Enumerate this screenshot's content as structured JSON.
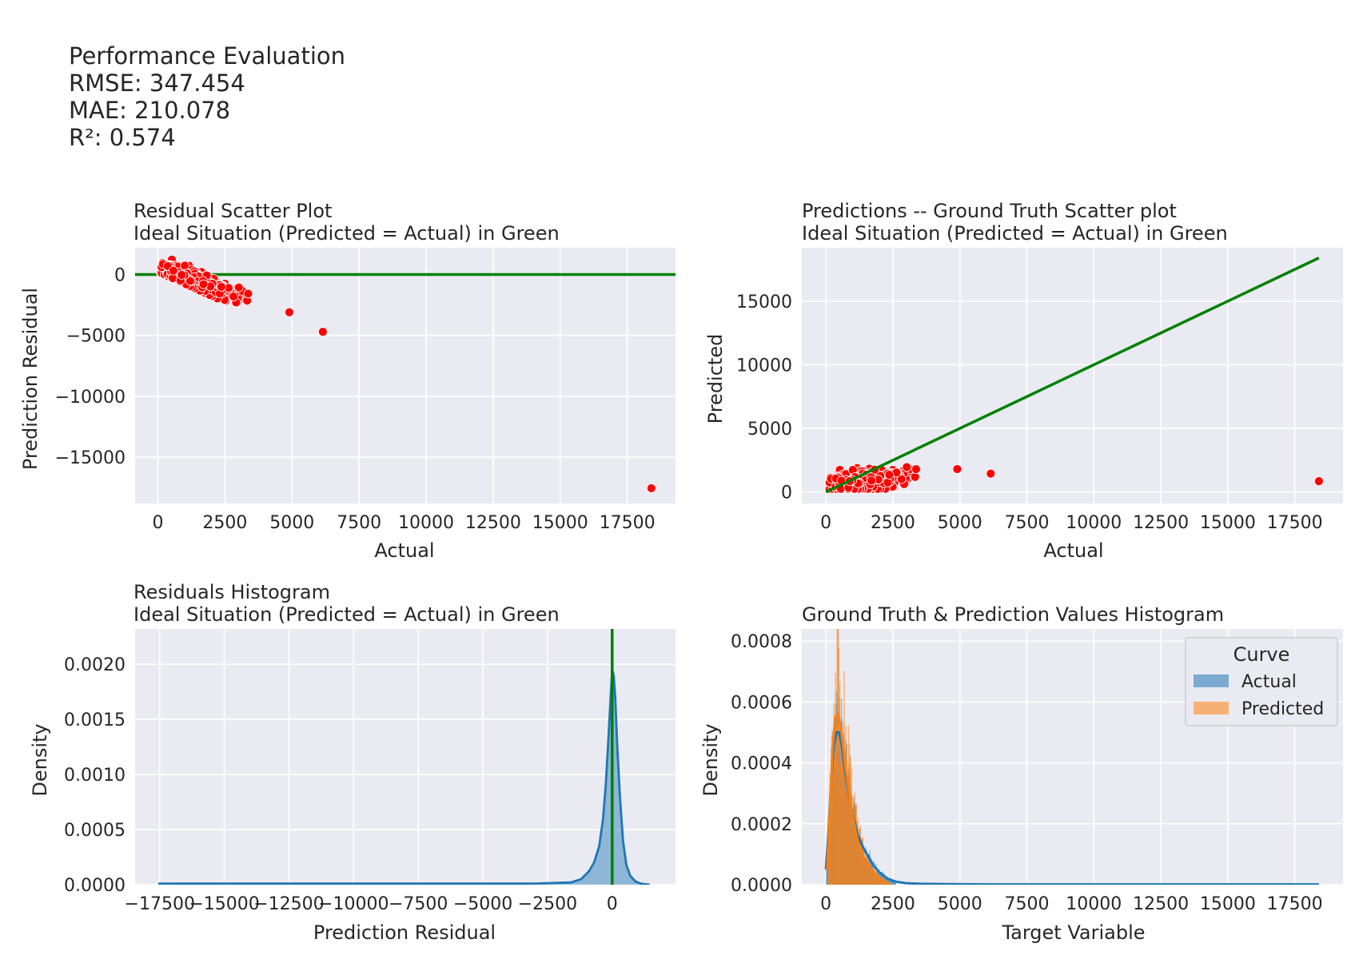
{
  "header": {
    "lines": [
      "Performance Evaluation",
      "RMSE: 347.454",
      "MAE: 210.078",
      "R²: 0.574"
    ]
  },
  "colors": {
    "panel_bg": "#eaeaf2",
    "grid": "#ffffff",
    "points": "#ff0000",
    "ideal_line": "#008000",
    "actual": "#1f77b4",
    "predicted": "#ff7f0e"
  },
  "chart_data": [
    {
      "id": "residual-scatter",
      "type": "scatter",
      "title": [
        "Residual Scatter Plot",
        "Ideal Situation (Predicted = Actual) in Green"
      ],
      "xlabel": "Actual",
      "ylabel": "Prediction Residual",
      "xlim": [
        -850,
        19300
      ],
      "ylim": [
        -18800,
        2200
      ],
      "xticks": [
        0,
        2500,
        5000,
        7500,
        10000,
        12500,
        15000,
        17500
      ],
      "xtick_labels": [
        "0",
        "2500",
        "5000",
        "7500",
        "10000",
        "12500",
        "15000",
        "17500"
      ],
      "yticks": [
        -15000,
        -10000,
        -5000,
        0
      ],
      "ytick_labels": [
        "−15000",
        "−10000",
        "−5000",
        "0"
      ],
      "grid": true,
      "ideal_line": {
        "orientation": "horizontal",
        "y": 0
      },
      "cluster": {
        "x_range": [
          0,
          3700
        ],
        "note": "dense cloud of points with residual decreasing as actual increases"
      },
      "outliers": [
        {
          "x": 4900,
          "y": -3100
        },
        {
          "x": 6150,
          "y": -4700
        },
        {
          "x": 18400,
          "y": -17550
        }
      ]
    },
    {
      "id": "pred-vs-truth",
      "type": "scatter",
      "title": [
        "Predictions -- Ground Truth Scatter plot",
        "Ideal Situation (Predicted = Actual) in Green"
      ],
      "xlabel": "Actual",
      "ylabel": "Predicted",
      "xlim": [
        -900,
        19300
      ],
      "ylim": [
        -900,
        19200
      ],
      "xticks": [
        0,
        2500,
        5000,
        7500,
        10000,
        12500,
        15000,
        17500
      ],
      "xtick_labels": [
        "0",
        "2500",
        "5000",
        "7500",
        "10000",
        "12500",
        "15000",
        "17500"
      ],
      "yticks": [
        0,
        5000,
        10000,
        15000
      ],
      "ytick_labels": [
        "0",
        "5000",
        "10000",
        "15000"
      ],
      "grid": true,
      "ideal_line": {
        "orientation": "diagonal",
        "from": [
          0,
          0
        ],
        "to": [
          18400,
          18400
        ]
      },
      "outliers": [
        {
          "x": 4900,
          "y": 1800
        },
        {
          "x": 6150,
          "y": 1450
        },
        {
          "x": 18400,
          "y": 850
        }
      ]
    },
    {
      "id": "residual-hist",
      "type": "area",
      "title": [
        "Residuals Histogram",
        "Ideal Situation (Predicted = Actual) in Green"
      ],
      "xlabel": "Prediction Residual",
      "ylabel": "Density",
      "xlim": [
        -18450,
        2450
      ],
      "ylim": [
        0,
        0.00232
      ],
      "xticks": [
        -17500,
        -15000,
        -12500,
        -10000,
        -7500,
        -5000,
        -2500,
        0
      ],
      "xtick_labels": [
        "−17500",
        "−15000",
        "−12500",
        "−10000",
        "−7500",
        "−5000",
        "−2500",
        "0"
      ],
      "yticks": [
        0,
        0.0005,
        0.001,
        0.0015,
        0.002
      ],
      "ytick_labels": [
        "0.0000",
        "0.0005",
        "0.0010",
        "0.0015",
        "0.0020"
      ],
      "grid": true,
      "ideal_line": {
        "orientation": "vertical",
        "x": 0
      },
      "kde": {
        "x": [
          -17550,
          -3000,
          -1600,
          -1200,
          -900,
          -700,
          -500,
          -350,
          -250,
          -150,
          -60,
          0,
          60,
          120,
          200,
          300,
          420,
          550,
          700,
          900,
          1100,
          1450
        ],
        "y": [
          1e-05,
          1e-05,
          2e-05,
          5e-05,
          0.00012,
          0.0002,
          0.00035,
          0.0006,
          0.0009,
          0.0013,
          0.0017,
          0.00195,
          0.0019,
          0.0017,
          0.00125,
          0.0008,
          0.0004,
          0.00018,
          8e-05,
          3e-05,
          1e-05,
          0.0
        ]
      }
    },
    {
      "id": "values-hist",
      "type": "area",
      "title": "Ground Truth & Prediction Values Histogram",
      "xlabel": "Target Variable",
      "ylabel": "Density",
      "xlim": [
        -900,
        19300
      ],
      "ylim": [
        0,
        0.00084
      ],
      "xticks": [
        0,
        2500,
        5000,
        7500,
        10000,
        12500,
        15000,
        17500
      ],
      "xtick_labels": [
        "0",
        "2500",
        "5000",
        "7500",
        "10000",
        "12500",
        "15000",
        "17500"
      ],
      "yticks": [
        0,
        0.0002,
        0.0004,
        0.0006,
        0.0008
      ],
      "ytick_labels": [
        "0.0000",
        "0.0002",
        "0.0004",
        "0.0006",
        "0.0008"
      ],
      "grid": true,
      "legend": {
        "title": "Curve",
        "placement": "top-right",
        "entries": [
          "Actual",
          "Predicted"
        ]
      },
      "series": [
        {
          "name": "Actual",
          "kde_x": [
            0,
            100,
            200,
            300,
            400,
            500,
            600,
            700,
            850,
            1000,
            1200,
            1400,
            1600,
            1800,
            2000,
            2300,
            2600,
            3000,
            3500,
            4500,
            6000,
            10000,
            18400
          ],
          "kde_y": [
            5e-05,
            0.00018,
            0.00035,
            0.00046,
            0.0005,
            0.0005,
            0.00045,
            0.00038,
            0.0003,
            0.00023,
            0.00016,
            0.00012,
            9e-05,
            6e-05,
            4e-05,
            2e-05,
            1e-05,
            5e-06,
            3e-06,
            2e-06,
            1e-06,
            1e-06,
            1e-06
          ]
        },
        {
          "name": "Predicted",
          "kde_x": [
            50,
            150,
            250,
            350,
            450,
            550,
            650,
            750,
            900,
            1050,
            1200,
            1400,
            1600,
            1800,
            2000,
            2200,
            2450
          ],
          "kde_y": [
            5e-05,
            0.00025,
            0.00045,
            0.00055,
            0.00056,
            0.00052,
            0.00045,
            0.00037,
            0.00028,
            0.0002,
            0.00014,
            9e-05,
            6e-05,
            4e-05,
            2e-05,
            1e-05,
            0.0
          ]
        }
      ]
    }
  ]
}
